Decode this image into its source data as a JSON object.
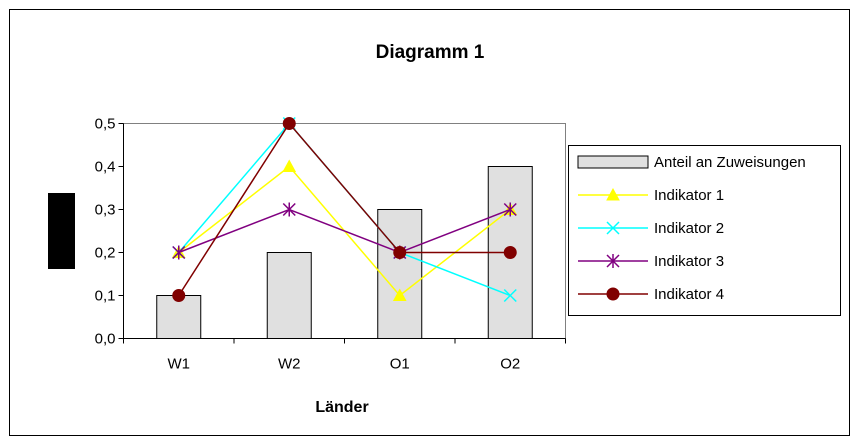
{
  "chart_data": {
    "type": "bar",
    "title": "Diagramm 1",
    "xlabel": "Länder",
    "ylabel": "",
    "categories": [
      "W1",
      "W2",
      "O1",
      "O2"
    ],
    "ylim": [
      0,
      0.5
    ],
    "yticks": [
      "0,0",
      "0,1",
      "0,2",
      "0,3",
      "0,4",
      "0,5"
    ],
    "grid": false,
    "legend_position": "right",
    "series": [
      {
        "name": "Anteil an Zuweisungen",
        "kind": "bar",
        "values": [
          0.1,
          0.2,
          0.3,
          0.4
        ],
        "color": "#e0e0e0",
        "marker": "none"
      },
      {
        "name": "Indikator 1",
        "kind": "line",
        "values": [
          0.2,
          0.4,
          0.1,
          0.3
        ],
        "color": "#ffff00",
        "marker": "triangle"
      },
      {
        "name": "Indikator 2",
        "kind": "line",
        "values": [
          0.2,
          0.5,
          0.2,
          0.1
        ],
        "color": "#00ffff",
        "marker": "x"
      },
      {
        "name": "Indikator 3",
        "kind": "line",
        "values": [
          0.2,
          0.3,
          0.2,
          0.3
        ],
        "color": "#800080",
        "marker": "star"
      },
      {
        "name": "Indikator 4",
        "kind": "line",
        "values": [
          0.1,
          0.5,
          0.2,
          0.2
        ],
        "color": "#800000",
        "marker": "circle"
      }
    ]
  }
}
